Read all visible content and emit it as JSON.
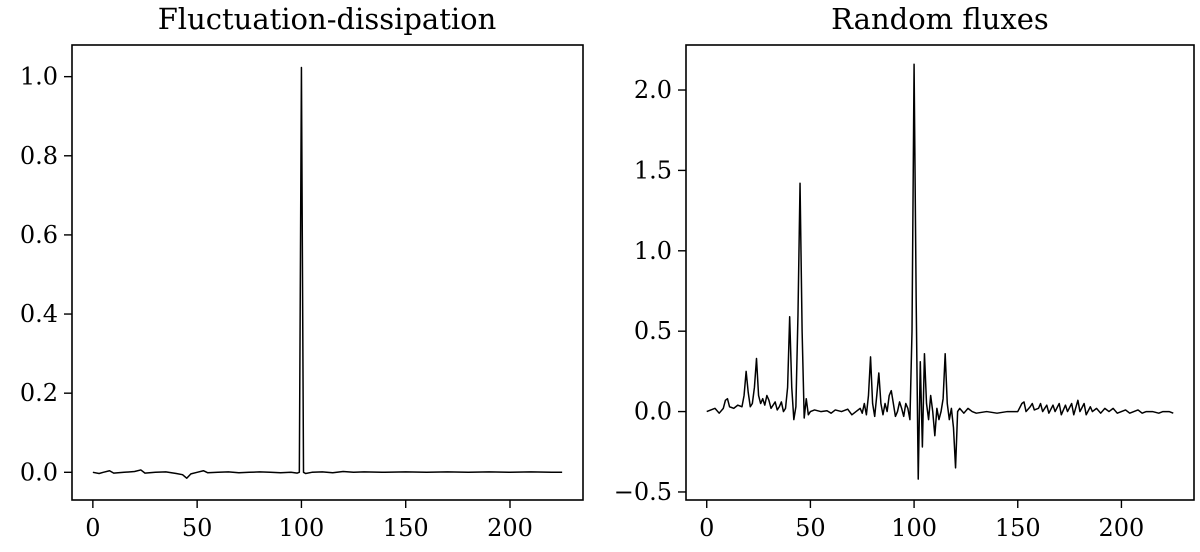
{
  "chart_data": [
    {
      "type": "line",
      "title": "Fluctuation-dissipation",
      "xlabel": "",
      "ylabel": "",
      "xlim": [
        -10,
        235
      ],
      "ylim": [
        -0.07,
        1.08
      ],
      "xticks": [
        0,
        50,
        100,
        150,
        200
      ],
      "yticks": [
        0.0,
        0.2,
        0.4,
        0.6,
        0.8,
        1.0
      ],
      "xtick_labels": [
        "0",
        "50",
        "100",
        "150",
        "200"
      ],
      "ytick_labels": [
        "0.0",
        "0.2",
        "0.4",
        "0.6",
        "0.8",
        "1.0"
      ],
      "grid": false,
      "series": [
        {
          "color": "#000000",
          "points": [
            [
              0,
              0.0
            ],
            [
              3,
              -0.003
            ],
            [
              5,
              0.0
            ],
            [
              8,
              0.004
            ],
            [
              10,
              -0.002
            ],
            [
              15,
              0.0
            ],
            [
              20,
              0.002
            ],
            [
              23,
              0.006
            ],
            [
              25,
              -0.002
            ],
            [
              30,
              0.0
            ],
            [
              35,
              0.001
            ],
            [
              40,
              -0.003
            ],
            [
              43,
              -0.006
            ],
            [
              45,
              -0.015
            ],
            [
              47,
              -0.004
            ],
            [
              50,
              0.0
            ],
            [
              53,
              0.004
            ],
            [
              55,
              -0.001
            ],
            [
              60,
              0.0
            ],
            [
              65,
              0.001
            ],
            [
              70,
              -0.001
            ],
            [
              75,
              0.0
            ],
            [
              80,
              0.001
            ],
            [
              85,
              0.0
            ],
            [
              90,
              -0.001
            ],
            [
              95,
              0.0
            ],
            [
              98,
              -0.002
            ],
            [
              99,
              0.0
            ],
            [
              100,
              1.023
            ],
            [
              101,
              0.0
            ],
            [
              102,
              -0.003
            ],
            [
              105,
              0.0
            ],
            [
              110,
              0.001
            ],
            [
              115,
              -0.001
            ],
            [
              120,
              0.002
            ],
            [
              125,
              0.0
            ],
            [
              130,
              0.001
            ],
            [
              140,
              0.0
            ],
            [
              150,
              0.001
            ],
            [
              160,
              0.0
            ],
            [
              170,
              0.001
            ],
            [
              180,
              0.0
            ],
            [
              190,
              0.001
            ],
            [
              200,
              0.0
            ],
            [
              210,
              0.001
            ],
            [
              220,
              0.0
            ],
            [
              225,
              0.0
            ]
          ]
        }
      ]
    },
    {
      "type": "line",
      "title": "Random fluxes",
      "xlabel": "",
      "ylabel": "",
      "xlim": [
        -10,
        235
      ],
      "ylim": [
        -0.55,
        2.28
      ],
      "xticks": [
        0,
        50,
        100,
        150,
        200
      ],
      "yticks": [
        -0.5,
        0.0,
        0.5,
        1.0,
        1.5,
        2.0
      ],
      "xtick_labels": [
        "0",
        "50",
        "100",
        "150",
        "200"
      ],
      "ytick_labels": [
        "−0.5",
        "0.0",
        "0.5",
        "1.0",
        "1.5",
        "2.0"
      ],
      "grid": false,
      "series": [
        {
          "color": "#000000",
          "points": [
            [
              0,
              0.0
            ],
            [
              2,
              0.01
            ],
            [
              4,
              0.02
            ],
            [
              6,
              -0.01
            ],
            [
              8,
              0.02
            ],
            [
              9,
              0.07
            ],
            [
              10,
              0.08
            ],
            [
              11,
              0.03
            ],
            [
              13,
              0.02
            ],
            [
              15,
              0.04
            ],
            [
              17,
              0.03
            ],
            [
              18,
              0.1
            ],
            [
              19,
              0.25
            ],
            [
              20,
              0.12
            ],
            [
              21,
              0.03
            ],
            [
              22,
              0.05
            ],
            [
              23,
              0.15
            ],
            [
              24,
              0.33
            ],
            [
              25,
              0.1
            ],
            [
              26,
              0.05
            ],
            [
              27,
              0.08
            ],
            [
              28,
              0.04
            ],
            [
              29,
              0.1
            ],
            [
              30,
              0.07
            ],
            [
              31,
              0.02
            ],
            [
              33,
              0.06
            ],
            [
              34,
              0.01
            ],
            [
              35,
              0.03
            ],
            [
              36,
              0.06
            ],
            [
              37,
              0.0
            ],
            [
              38,
              0.02
            ],
            [
              39,
              0.15
            ],
            [
              40,
              0.59
            ],
            [
              41,
              0.15
            ],
            [
              42,
              -0.05
            ],
            [
              43,
              0.03
            ],
            [
              44,
              0.6
            ],
            [
              45,
              1.42
            ],
            [
              46,
              0.5
            ],
            [
              47,
              -0.04
            ],
            [
              48,
              0.08
            ],
            [
              49,
              -0.02
            ],
            [
              50,
              0.0
            ],
            [
              52,
              0.01
            ],
            [
              55,
              0.0
            ],
            [
              58,
              0.005
            ],
            [
              60,
              -0.01
            ],
            [
              62,
              0.01
            ],
            [
              65,
              0.0
            ],
            [
              68,
              0.015
            ],
            [
              70,
              -0.02
            ],
            [
              72,
              0.0
            ],
            [
              74,
              0.02
            ],
            [
              75,
              -0.01
            ],
            [
              76,
              0.05
            ],
            [
              77,
              -0.02
            ],
            [
              78,
              0.1
            ],
            [
              79,
              0.34
            ],
            [
              80,
              0.05
            ],
            [
              81,
              -0.03
            ],
            [
              82,
              0.1
            ],
            [
              83,
              0.24
            ],
            [
              84,
              0.05
            ],
            [
              85,
              -0.02
            ],
            [
              86,
              0.05
            ],
            [
              87,
              0.0
            ],
            [
              88,
              0.1
            ],
            [
              89,
              0.13
            ],
            [
              90,
              0.05
            ],
            [
              91,
              -0.03
            ],
            [
              92,
              0.0
            ],
            [
              93,
              0.06
            ],
            [
              94,
              0.02
            ],
            [
              95,
              -0.03
            ],
            [
              96,
              0.05
            ],
            [
              97,
              0.02
            ],
            [
              98,
              -0.05
            ],
            [
              99,
              0.5
            ],
            [
              100,
              2.16
            ],
            [
              101,
              0.7
            ],
            [
              102,
              -0.42
            ],
            [
              103,
              0.31
            ],
            [
              104,
              -0.22
            ],
            [
              105,
              0.36
            ],
            [
              106,
              0.05
            ],
            [
              107,
              -0.05
            ],
            [
              108,
              0.1
            ],
            [
              109,
              0.0
            ],
            [
              110,
              -0.15
            ],
            [
              111,
              0.02
            ],
            [
              112,
              -0.05
            ],
            [
              113,
              0.0
            ],
            [
              114,
              0.08
            ],
            [
              115,
              0.36
            ],
            [
              116,
              0.05
            ],
            [
              117,
              -0.05
            ],
            [
              118,
              0.02
            ],
            [
              119,
              -0.1
            ],
            [
              120,
              -0.35
            ],
            [
              121,
              0.0
            ],
            [
              122,
              0.02
            ],
            [
              124,
              -0.01
            ],
            [
              126,
              0.02
            ],
            [
              128,
              0.0
            ],
            [
              130,
              -0.01
            ],
            [
              135,
              0.0
            ],
            [
              140,
              -0.01
            ],
            [
              145,
              0.0
            ],
            [
              150,
              0.0
            ],
            [
              152,
              0.05
            ],
            [
              153,
              0.06
            ],
            [
              154,
              0.0
            ],
            [
              156,
              0.03
            ],
            [
              157,
              0.05
            ],
            [
              158,
              0.01
            ],
            [
              160,
              0.02
            ],
            [
              161,
              0.05
            ],
            [
              162,
              0.0
            ],
            [
              164,
              0.04
            ],
            [
              165,
              -0.01
            ],
            [
              167,
              0.04
            ],
            [
              168,
              0.0
            ],
            [
              170,
              0.05
            ],
            [
              171,
              -0.02
            ],
            [
              173,
              0.04
            ],
            [
              174,
              0.0
            ],
            [
              176,
              0.05
            ],
            [
              177,
              -0.02
            ],
            [
              179,
              0.07
            ],
            [
              180,
              0.0
            ],
            [
              182,
              0.05
            ],
            [
              183,
              -0.02
            ],
            [
              185,
              0.03
            ],
            [
              186,
              0.0
            ],
            [
              188,
              0.02
            ],
            [
              190,
              -0.01
            ],
            [
              192,
              0.02
            ],
            [
              194,
              0.0
            ],
            [
              196,
              0.02
            ],
            [
              198,
              -0.01
            ],
            [
              200,
              0.0
            ],
            [
              202,
              0.01
            ],
            [
              204,
              -0.01
            ],
            [
              206,
              0.0
            ],
            [
              208,
              0.01
            ],
            [
              210,
              -0.01
            ],
            [
              212,
              0.0
            ],
            [
              215,
              0.0
            ],
            [
              218,
              -0.01
            ],
            [
              220,
              0.0
            ],
            [
              223,
              0.0
            ],
            [
              225,
              -0.01
            ]
          ]
        }
      ]
    }
  ]
}
